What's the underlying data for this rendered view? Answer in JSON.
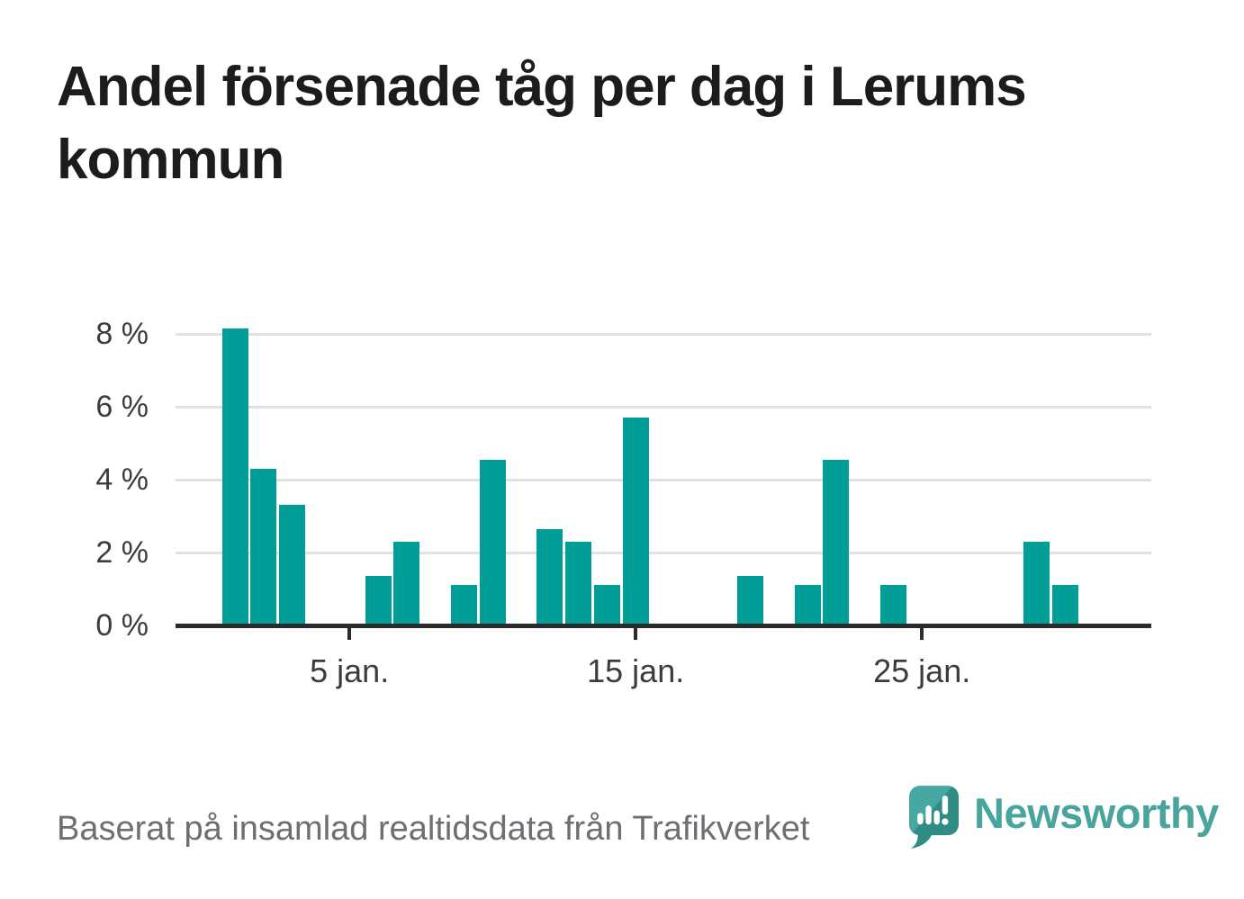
{
  "title": "Andel försenade tåg per dag i Lerums kommun",
  "source": {
    "text": "Baserat på insamlad realtidsdata från Trafikverket"
  },
  "brand": {
    "name": "Newsworthy"
  },
  "icons": {
    "logo": "newsworthy-speech-bubble-bar-chart-exclamation-icon"
  },
  "colors": {
    "background": "#ffffff",
    "bar": "#009e96",
    "title": "#1c1d1a",
    "axis": "#2b2b2b",
    "grid": "#e1e1e1",
    "tick_label": "#3c3c3c",
    "source_text": "#6e6e73",
    "brand_teal": "#4aa49e",
    "logo_bubble": "#3fa39b",
    "logo_bubble_shade": "#2f8d86"
  },
  "chart_data": {
    "type": "bar",
    "title": "Andel försenade tåg per dag i Lerums kommun",
    "xlabel": "",
    "ylabel": "",
    "unit": "%",
    "ylim": [
      0,
      8.3
    ],
    "grid": "horizontal",
    "legend": "none",
    "categories": [
      "1 jan.",
      "2 jan.",
      "3 jan.",
      "4 jan.",
      "5 jan.",
      "6 jan.",
      "7 jan.",
      "8 jan.",
      "9 jan.",
      "10 jan.",
      "11 jan.",
      "12 jan.",
      "13 jan.",
      "14 jan.",
      "15 jan.",
      "16 jan.",
      "17 jan.",
      "18 jan.",
      "19 jan.",
      "20 jan.",
      "21 jan.",
      "22 jan.",
      "23 jan.",
      "24 jan.",
      "25 jan.",
      "26 jan.",
      "27 jan.",
      "28 jan.",
      "29 jan.",
      "30 jan.",
      "31 jan."
    ],
    "values": [
      8.15,
      4.3,
      3.3,
      null,
      null,
      1.35,
      2.3,
      null,
      1.1,
      4.55,
      null,
      2.65,
      2.3,
      1.1,
      5.7,
      null,
      null,
      null,
      1.35,
      null,
      1.1,
      4.55,
      null,
      1.1,
      null,
      null,
      null,
      null,
      2.3,
      1.1,
      null
    ],
    "y_ticks": [
      {
        "value": 8,
        "label": "8 %"
      },
      {
        "value": 6,
        "label": "6 %"
      },
      {
        "value": 4,
        "label": "4 %"
      },
      {
        "value": 2,
        "label": "2 %"
      },
      {
        "value": 0,
        "label": "0 %"
      }
    ],
    "x_ticks": [
      {
        "day": 5,
        "label": "5 jan."
      },
      {
        "day": 15,
        "label": "15 jan."
      },
      {
        "day": 25,
        "label": "25 jan."
      }
    ]
  }
}
